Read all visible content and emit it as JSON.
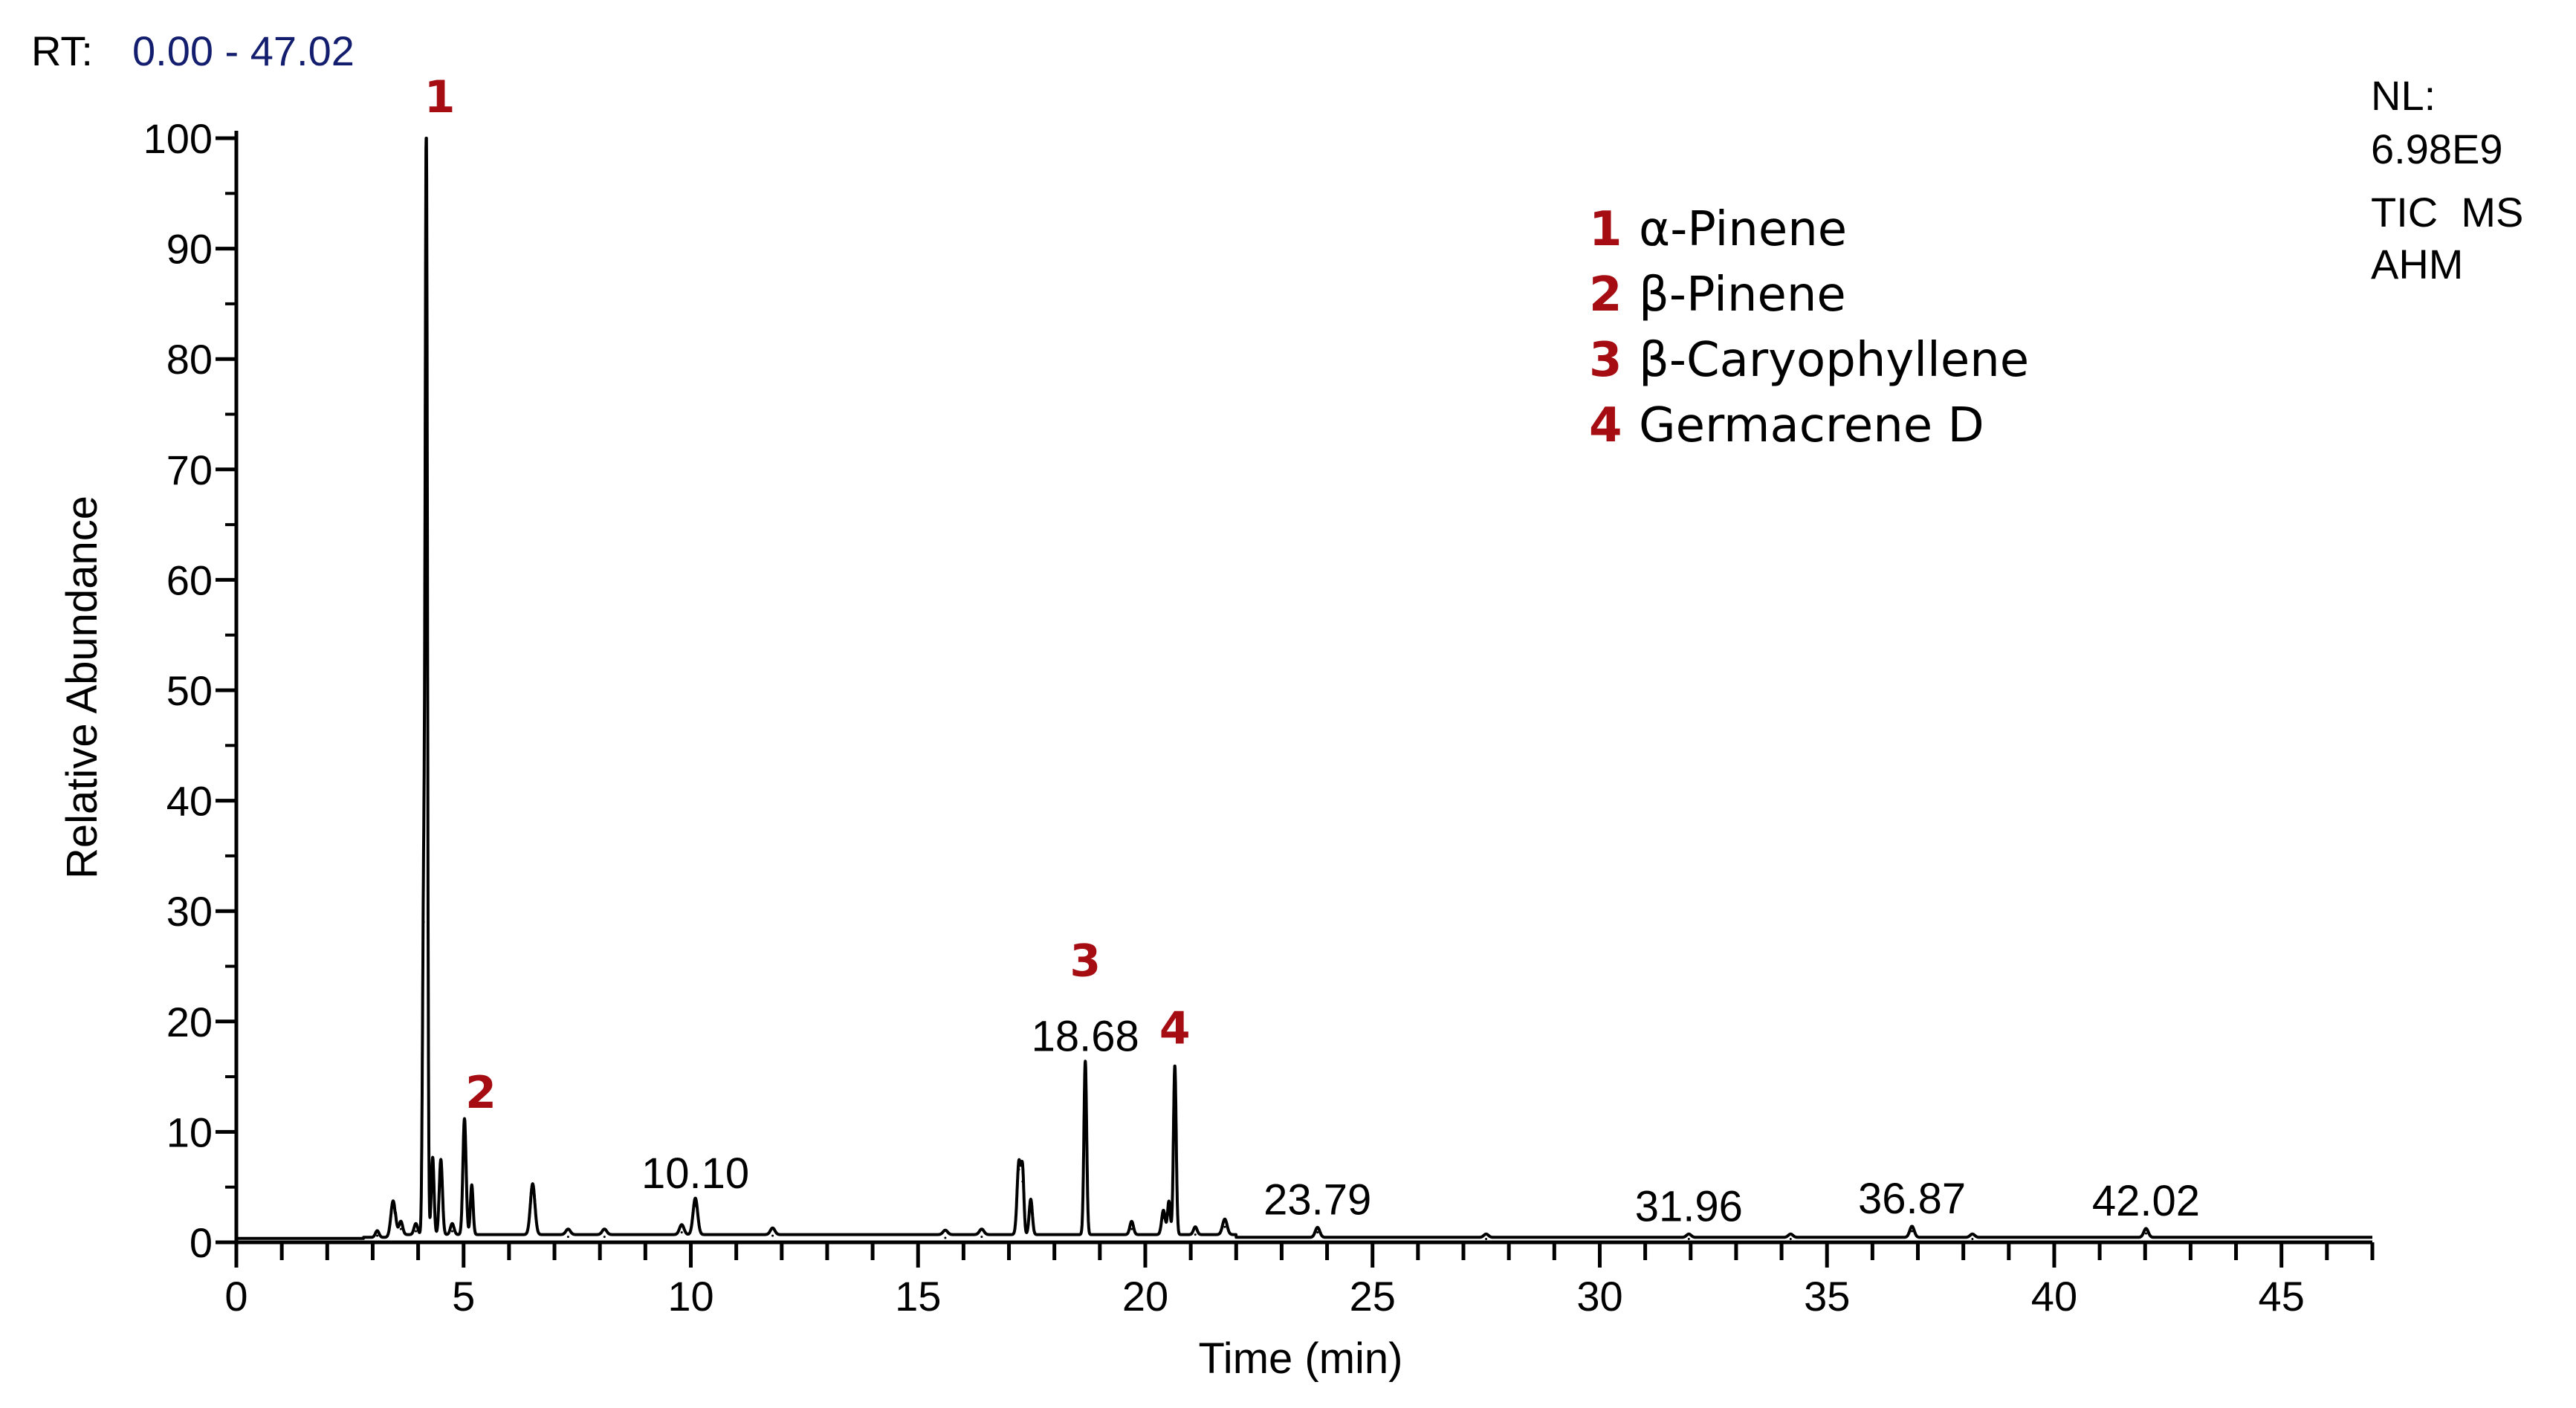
{
  "chart_data": {
    "type": "line",
    "header": {
      "rt_label": "RT:",
      "rt_range": "0.00 - 47.02",
      "nl_label": "NL:",
      "nl_value": "6.98E9",
      "scan_type": "TIC  MS",
      "sample": "AHM"
    },
    "xlabel": "Time (min)",
    "ylabel": "Relative Abundance",
    "xlim": [
      0,
      47
    ],
    "ylim": [
      0,
      100
    ],
    "x_ticks": [
      0,
      5,
      10,
      15,
      20,
      25,
      30,
      35,
      40,
      45
    ],
    "x_tick_labels": [
      "0",
      "5",
      "10",
      "15",
      "20",
      "25",
      "30",
      "35",
      "40",
      "45"
    ],
    "y_ticks": [
      0,
      10,
      20,
      30,
      40,
      50,
      60,
      70,
      80,
      90,
      100
    ],
    "y_tick_labels": [
      "0",
      "10",
      "20",
      "30",
      "40",
      "50",
      "60",
      "70",
      "80",
      "90",
      "100"
    ],
    "grid": false,
    "line_color": "#000000",
    "peaks": [
      {
        "x": 3.1,
        "y": 0.6,
        "w": 0.04
      },
      {
        "x": 3.45,
        "y": 3.3,
        "w": 0.05
      },
      {
        "x": 3.62,
        "y": 1.2,
        "w": 0.04
      },
      {
        "x": 3.95,
        "y": 1.0,
        "w": 0.04
      },
      {
        "x": 4.12,
        "y": 29.0,
        "w": 0.025
      },
      {
        "x": 4.18,
        "y": 100.0,
        "w": 0.025
      },
      {
        "x": 4.32,
        "y": 7.0,
        "w": 0.03
      },
      {
        "x": 4.5,
        "y": 6.8,
        "w": 0.035
      },
      {
        "x": 4.75,
        "y": 1.0,
        "w": 0.04
      },
      {
        "x": 5.02,
        "y": 10.5,
        "w": 0.035
      },
      {
        "x": 5.18,
        "y": 4.5,
        "w": 0.03
      },
      {
        "x": 6.52,
        "y": 4.6,
        "w": 0.05
      },
      {
        "x": 7.3,
        "y": 0.5,
        "w": 0.05
      },
      {
        "x": 8.1,
        "y": 0.5,
        "w": 0.05
      },
      {
        "x": 9.8,
        "y": 0.9,
        "w": 0.05
      },
      {
        "x": 10.1,
        "y": 3.3,
        "w": 0.05
      },
      {
        "x": 11.8,
        "y": 0.6,
        "w": 0.05
      },
      {
        "x": 15.6,
        "y": 0.4,
        "w": 0.05
      },
      {
        "x": 16.4,
        "y": 0.5,
        "w": 0.05
      },
      {
        "x": 17.22,
        "y": 6.6,
        "w": 0.04
      },
      {
        "x": 17.3,
        "y": 5.5,
        "w": 0.03
      },
      {
        "x": 17.48,
        "y": 3.2,
        "w": 0.035
      },
      {
        "x": 18.68,
        "y": 15.7,
        "w": 0.03
      },
      {
        "x": 19.7,
        "y": 1.2,
        "w": 0.04
      },
      {
        "x": 20.4,
        "y": 2.2,
        "w": 0.04
      },
      {
        "x": 20.52,
        "y": 3.0,
        "w": 0.03
      },
      {
        "x": 20.65,
        "y": 15.3,
        "w": 0.03
      },
      {
        "x": 21.1,
        "y": 0.7,
        "w": 0.04
      },
      {
        "x": 21.75,
        "y": 1.4,
        "w": 0.05
      },
      {
        "x": 23.79,
        "y": 0.9,
        "w": 0.05
      },
      {
        "x": 27.5,
        "y": 0.3,
        "w": 0.05
      },
      {
        "x": 31.96,
        "y": 0.3,
        "w": 0.05
      },
      {
        "x": 34.2,
        "y": 0.3,
        "w": 0.05
      },
      {
        "x": 36.87,
        "y": 1.0,
        "w": 0.05
      },
      {
        "x": 38.2,
        "y": 0.3,
        "w": 0.05
      },
      {
        "x": 42.02,
        "y": 0.8,
        "w": 0.05
      }
    ],
    "peak_labels": [
      {
        "text": "10.10",
        "x": 10.1,
        "y": 3.3
      },
      {
        "text": "18.68",
        "x": 18.68,
        "y": 15.7
      },
      {
        "text": "23.79",
        "x": 23.79,
        "y": 0.9
      },
      {
        "text": "31.96",
        "x": 31.96,
        "y": 0.3
      },
      {
        "text": "36.87",
        "x": 36.87,
        "y": 1.0
      },
      {
        "text": "42.02",
        "x": 42.02,
        "y": 0.8
      }
    ],
    "annotations": [
      {
        "number": "1",
        "x": 4.18,
        "y": 100.0
      },
      {
        "number": "2",
        "x": 5.02,
        "y": 10.5
      },
      {
        "number": "3",
        "x": 18.68,
        "y": 15.7
      },
      {
        "number": "4",
        "x": 20.65,
        "y": 15.3
      }
    ],
    "annotation_color": "#a50d12",
    "legend": {
      "placement": "top-right",
      "entries": [
        {
          "number": "1",
          "name": "α-Pinene"
        },
        {
          "number": "2",
          "name": "β-Pinene"
        },
        {
          "number": "3",
          "name": "β-Caryophyllene"
        },
        {
          "number": "4",
          "name": "Germacrene D"
        }
      ]
    }
  }
}
